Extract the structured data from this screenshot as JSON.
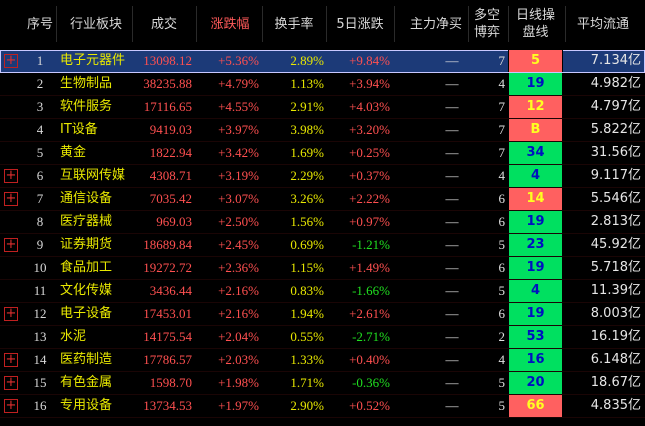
{
  "table": {
    "columns": [
      "序号",
      "行业板块",
      "成交",
      "涨跌幅",
      "换手率",
      "5日涨跌",
      "主力净买",
      "多空\n博弈",
      "日线操\n盘线",
      "平均流通"
    ],
    "highlight_column": 3,
    "selected_row": 0,
    "rows": [
      {
        "expand": true,
        "line_color": "#ff6060",
        "cells": [
          "1",
          "电子元器件",
          "13098.12",
          "+5.36%",
          "2.89%",
          "+9.84%",
          "—",
          "7",
          "5",
          "7.134亿"
        ]
      },
      {
        "expand": false,
        "line_color": "#00e060",
        "cells": [
          "2",
          "生物制品",
          "38235.88",
          "+4.79%",
          "1.13%",
          "+3.94%",
          "—",
          "4",
          "19",
          "4.982亿"
        ]
      },
      {
        "expand": false,
        "line_color": "#ff6060",
        "cells": [
          "3",
          "软件服务",
          "17116.65",
          "+4.55%",
          "2.91%",
          "+4.03%",
          "—",
          "7",
          "12",
          "4.797亿"
        ]
      },
      {
        "expand": false,
        "line_color": "#ff6060",
        "cells": [
          "4",
          "IT设备",
          "9419.03",
          "+3.97%",
          "3.98%",
          "+3.20%",
          "—",
          "7",
          "B",
          "5.822亿"
        ]
      },
      {
        "expand": false,
        "line_color": "#00e060",
        "cells": [
          "5",
          "黄金",
          "1822.94",
          "+3.42%",
          "1.69%",
          "+0.25%",
          "—",
          "7",
          "34",
          "31.56亿"
        ]
      },
      {
        "expand": true,
        "line_color": "#00e060",
        "cells": [
          "6",
          "互联网传媒",
          "4308.71",
          "+3.19%",
          "2.29%",
          "+0.37%",
          "—",
          "4",
          "4",
          "9.117亿"
        ]
      },
      {
        "expand": true,
        "line_color": "#ff6060",
        "cells": [
          "7",
          "通信设备",
          "7035.42",
          "+3.07%",
          "3.26%",
          "+2.22%",
          "—",
          "6",
          "14",
          "5.546亿"
        ]
      },
      {
        "expand": false,
        "line_color": "#00e060",
        "cells": [
          "8",
          "医疗器械",
          "969.03",
          "+2.50%",
          "1.56%",
          "+0.97%",
          "—",
          "6",
          "19",
          "2.813亿"
        ]
      },
      {
        "expand": true,
        "line_color": "#00e060",
        "cells": [
          "9",
          "证券期货",
          "18689.84",
          "+2.45%",
          "0.69%",
          "-1.21%",
          "—",
          "5",
          "23",
          "45.92亿"
        ]
      },
      {
        "expand": false,
        "line_color": "#00e060",
        "cells": [
          "10",
          "食品加工",
          "19272.72",
          "+2.36%",
          "1.15%",
          "+1.49%",
          "—",
          "6",
          "19",
          "5.718亿"
        ]
      },
      {
        "expand": false,
        "line_color": "#00e060",
        "cells": [
          "11",
          "文化传媒",
          "3436.44",
          "+2.16%",
          "0.83%",
          "-1.66%",
          "—",
          "5",
          "4",
          "11.39亿"
        ]
      },
      {
        "expand": true,
        "line_color": "#00e060",
        "cells": [
          "12",
          "电子设备",
          "17453.01",
          "+2.16%",
          "1.94%",
          "+2.61%",
          "—",
          "6",
          "19",
          "8.003亿"
        ]
      },
      {
        "expand": false,
        "line_color": "#00e060",
        "cells": [
          "13",
          "水泥",
          "14175.54",
          "+2.04%",
          "0.55%",
          "-2.71%",
          "—",
          "2",
          "53",
          "16.19亿"
        ]
      },
      {
        "expand": true,
        "line_color": "#00e060",
        "cells": [
          "14",
          "医药制造",
          "17786.57",
          "+2.03%",
          "1.33%",
          "+0.40%",
          "—",
          "4",
          "16",
          "6.148亿"
        ]
      },
      {
        "expand": true,
        "line_color": "#00e060",
        "cells": [
          "15",
          "有色金属",
          "1598.70",
          "+1.98%",
          "1.71%",
          "-0.36%",
          "—",
          "5",
          "20",
          "18.67亿"
        ]
      },
      {
        "expand": true,
        "line_color": "#ff6060",
        "cells": [
          "16",
          "专用设备",
          "13734.53",
          "+1.97%",
          "2.90%",
          "+0.52%",
          "—",
          "5",
          "66",
          "4.835亿"
        ]
      }
    ]
  }
}
